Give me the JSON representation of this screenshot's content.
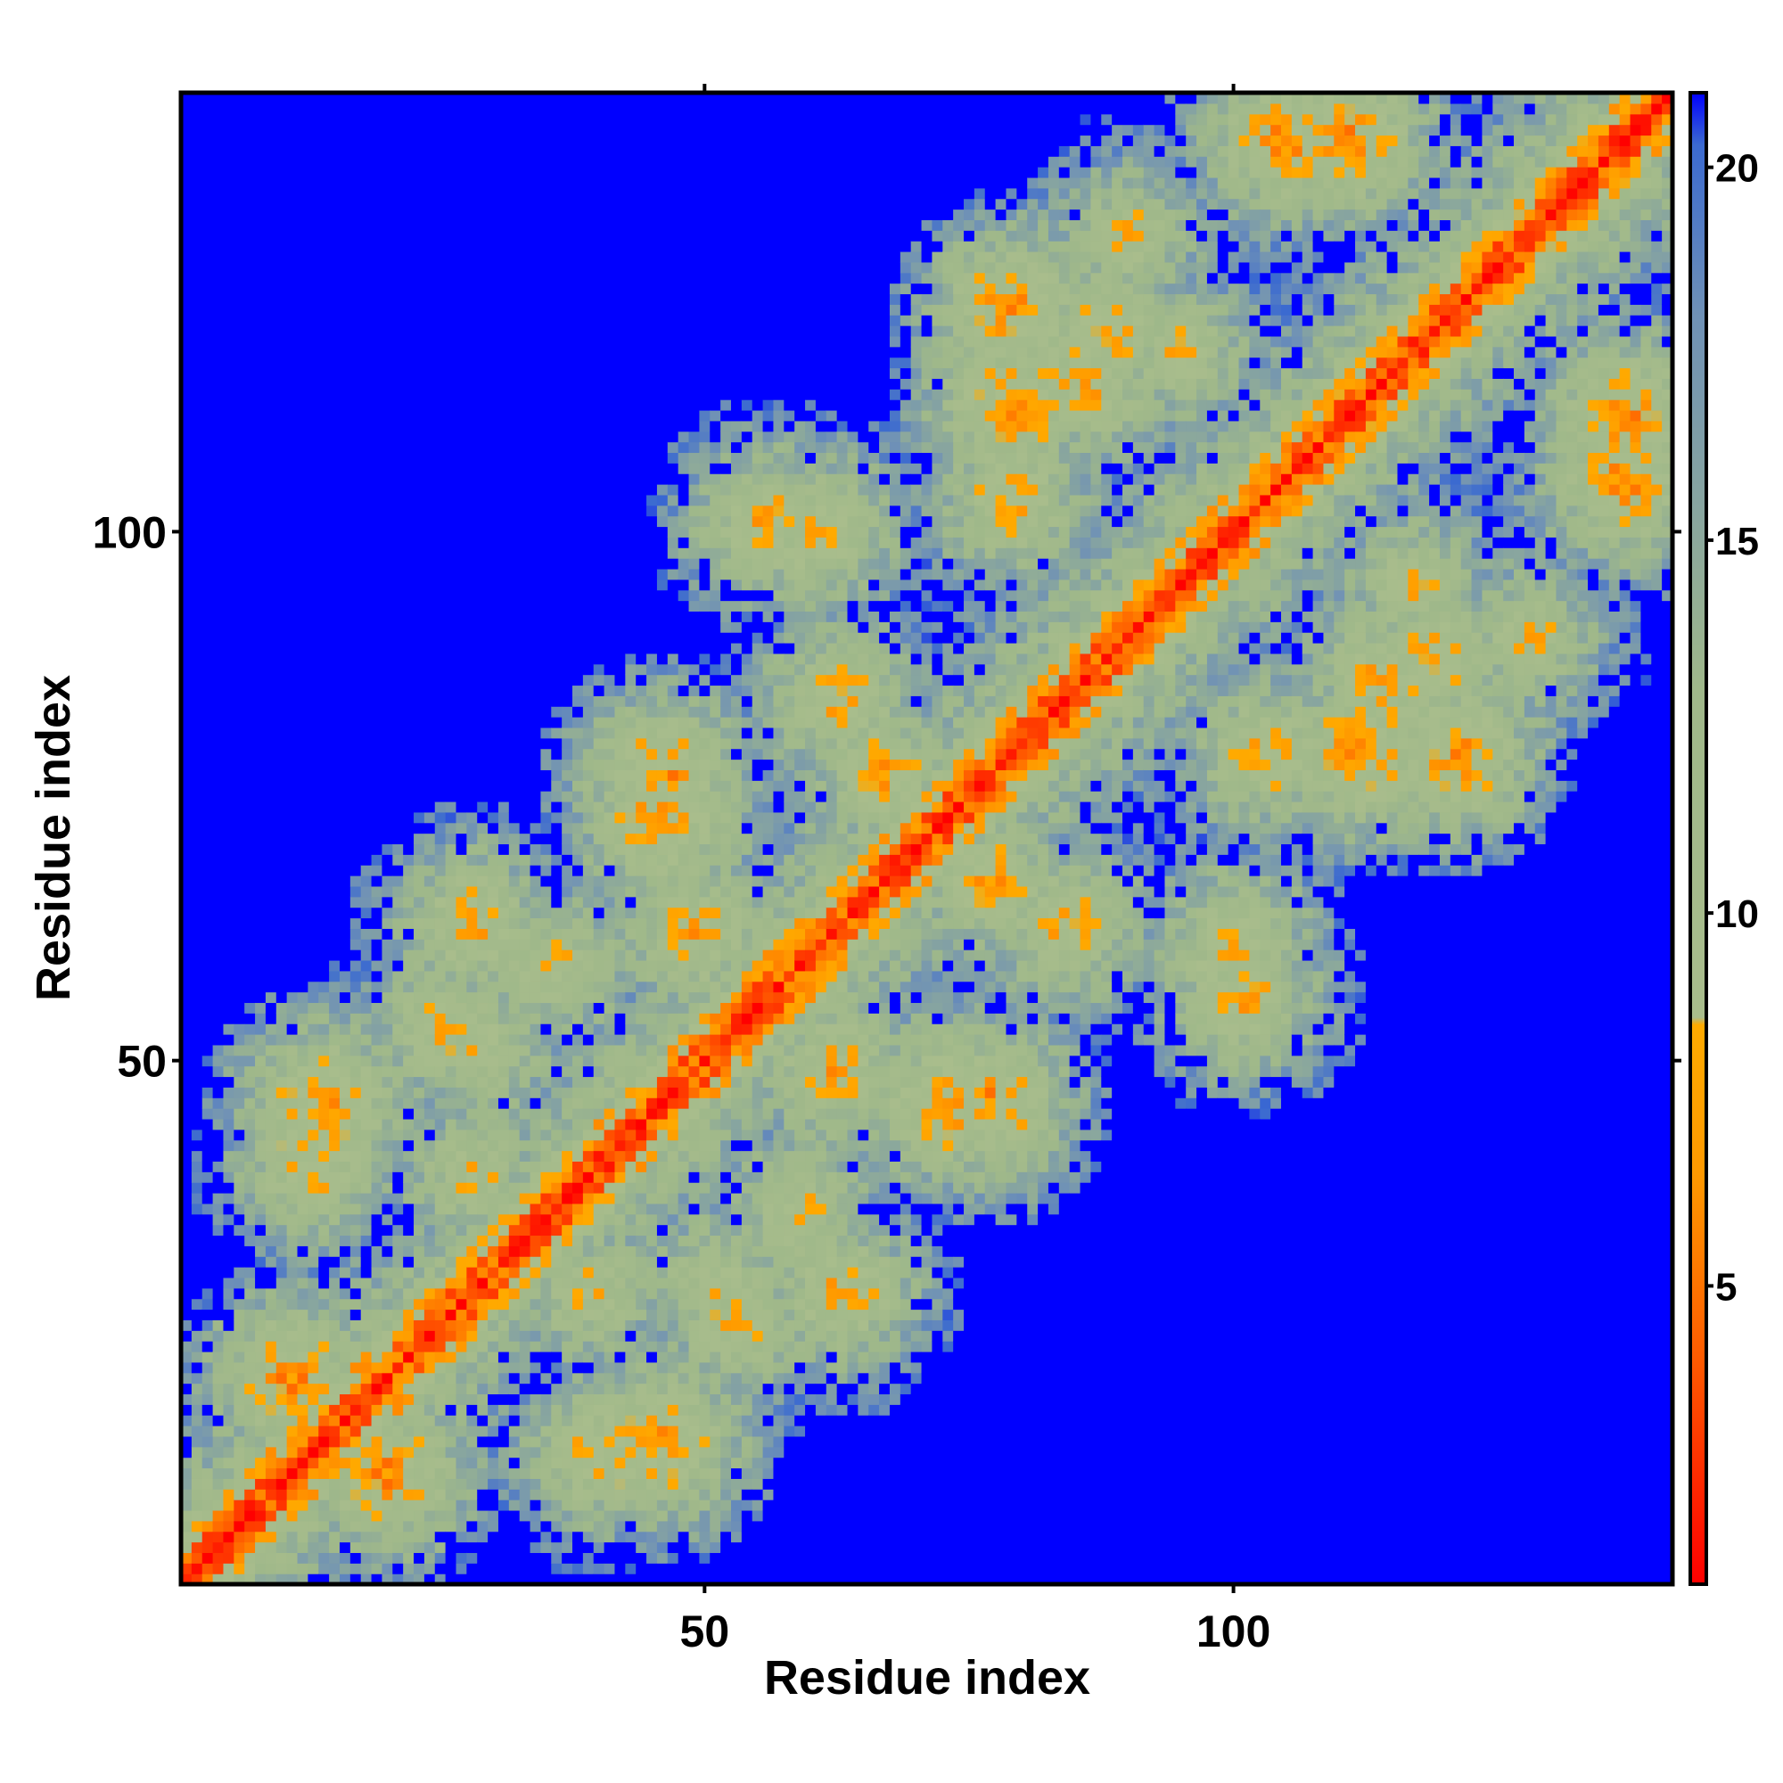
{
  "chart_data": {
    "type": "heatmap",
    "title": "",
    "xlabel": "Residue index",
    "ylabel": "Residue index",
    "n_residues": 141,
    "x_ticks": [
      50,
      100
    ],
    "y_ticks": [
      50,
      100
    ],
    "colorbar": {
      "range": [
        1,
        21
      ],
      "ticks": [
        5,
        10,
        15,
        20
      ],
      "stops": [
        {
          "value": 1,
          "color": "#ff0000"
        },
        {
          "value": 4,
          "color": "#ff5a00"
        },
        {
          "value": 6.5,
          "color": "#ff9900"
        },
        {
          "value": 8.5,
          "color": "#ffaa00"
        },
        {
          "value": 8.6,
          "color": "#a9bd8c"
        },
        {
          "value": 13,
          "color": "#9fb88a"
        },
        {
          "value": 18,
          "color": "#6f91b6"
        },
        {
          "value": 20.3,
          "color": "#3b6ad0"
        },
        {
          "value": 21,
          "color": "#0000ff"
        }
      ]
    },
    "matrix_description_values": {
      "diagonal_distance": 1.5,
      "background_distance": 21,
      "contact_blocks": [
        {
          "i": 10,
          "j": 19,
          "value": 6
        },
        {
          "i": 13,
          "j": 45,
          "value": 6
        },
        {
          "i": 24,
          "j": 52,
          "value": 8
        },
        {
          "i": 27,
          "j": 38,
          "value": 8
        },
        {
          "i": 39,
          "j": 12,
          "value": 7
        },
        {
          "i": 45,
          "j": 72,
          "value": 6
        },
        {
          "i": 48,
          "j": 61,
          "value": 7
        },
        {
          "i": 50,
          "j": 28,
          "value": 8
        },
        {
          "i": 58,
          "j": 35,
          "value": 8
        },
        {
          "i": 60,
          "j": 99,
          "value": 7
        },
        {
          "i": 62,
          "j": 27,
          "value": 7
        },
        {
          "i": 66,
          "j": 76,
          "value": 7
        },
        {
          "i": 76,
          "j": 45,
          "value": 6
        },
        {
          "i": 78,
          "j": 111,
          "value": 6
        },
        {
          "i": 83,
          "j": 62,
          "value": 7
        },
        {
          "i": 85,
          "j": 113,
          "value": 7
        },
        {
          "i": 94,
          "j": 116,
          "value": 8
        },
        {
          "i": 100,
          "j": 55,
          "value": 7
        },
        {
          "i": 102,
          "j": 78,
          "value": 7
        },
        {
          "i": 110,
          "j": 136,
          "value": 6
        },
        {
          "i": 118,
          "j": 87,
          "value": 7
        },
        {
          "i": 120,
          "j": 78,
          "value": 6
        },
        {
          "i": 127,
          "j": 89,
          "value": 8
        },
        {
          "i": 136,
          "j": 104,
          "value": 6
        }
      ]
    }
  }
}
